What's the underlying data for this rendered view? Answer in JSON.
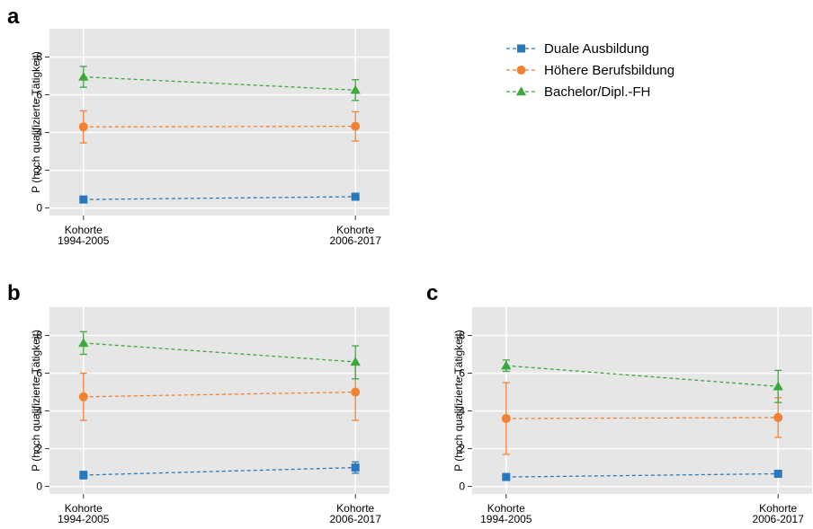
{
  "legend": {
    "placement": "top-right",
    "items": [
      {
        "label": "Duale Ausbildung",
        "color": "#2878bd",
        "marker": "square"
      },
      {
        "label": "Höhere Berufsbildung",
        "color": "#f28232",
        "marker": "circle"
      },
      {
        "label": "Bachelor/Dipl.-FH",
        "color": "#3aa83a",
        "marker": "triangle"
      }
    ]
  },
  "chart_data": [
    {
      "type": "line",
      "panel_label": "a",
      "ylabel": "P (hoch qualifizierte Tätigkeit)",
      "xlabel": "",
      "categories": [
        [
          "Kohorte",
          "1994-2005"
        ],
        [
          "Kohorte",
          "2006-2017"
        ]
      ],
      "ylim": [
        -0.04,
        0.95
      ],
      "yticks": [
        0,
        0.2,
        0.4,
        0.6,
        0.8
      ],
      "ytick_labels": [
        "0",
        ",2",
        ",4",
        ",6",
        ",8"
      ],
      "grid": true,
      "series": [
        {
          "name": "Duale Ausbildung",
          "values": [
            0.045,
            0.06
          ],
          "ci_low": [
            0.04,
            0.052
          ],
          "ci_high": [
            0.05,
            0.068
          ]
        },
        {
          "name": "Höhere Berufsbildung",
          "values": [
            0.43,
            0.433
          ],
          "ci_low": [
            0.345,
            0.355
          ],
          "ci_high": [
            0.515,
            0.51
          ]
        },
        {
          "name": "Bachelor/Dipl.-FH",
          "values": [
            0.695,
            0.625
          ],
          "ci_low": [
            0.64,
            0.57
          ],
          "ci_high": [
            0.75,
            0.68
          ]
        }
      ]
    },
    {
      "type": "line",
      "panel_label": "b",
      "ylabel": "P (hoch qualifizierte Tätigkeit)",
      "xlabel": "",
      "categories": [
        [
          "Kohorte",
          "1994-2005"
        ],
        [
          "Kohorte",
          "2006-2017"
        ]
      ],
      "ylim": [
        -0.04,
        0.95
      ],
      "yticks": [
        0,
        0.2,
        0.4,
        0.6,
        0.8
      ],
      "ytick_labels": [
        "0",
        ",2",
        ",4",
        ",6",
        ",8"
      ],
      "grid": true,
      "series": [
        {
          "name": "Duale Ausbildung",
          "values": [
            0.06,
            0.1
          ],
          "ci_low": [
            0.04,
            0.07
          ],
          "ci_high": [
            0.08,
            0.13
          ]
        },
        {
          "name": "Höhere Berufsbildung",
          "values": [
            0.475,
            0.5
          ],
          "ci_low": [
            0.35,
            0.35
          ],
          "ci_high": [
            0.6,
            0.65
          ]
        },
        {
          "name": "Bachelor/Dipl.-FH",
          "values": [
            0.76,
            0.66
          ],
          "ci_low": [
            0.7,
            0.57
          ],
          "ci_high": [
            0.82,
            0.745
          ]
        }
      ]
    },
    {
      "type": "line",
      "panel_label": "c",
      "ylabel": "P (hoch qualifizierte Tätigkeit)",
      "xlabel": "",
      "categories": [
        [
          "Kohorte",
          "1994-2005"
        ],
        [
          "Kohorte",
          "2006-2017"
        ]
      ],
      "ylim": [
        -0.04,
        0.95
      ],
      "yticks": [
        0,
        0.2,
        0.4,
        0.6,
        0.8
      ],
      "ytick_labels": [
        "0",
        ",2",
        ",4",
        ",6",
        ",8"
      ],
      "grid": true,
      "series": [
        {
          "name": "Duale Ausbildung",
          "values": [
            0.05,
            0.067
          ],
          "ci_low": [
            0.04,
            0.05
          ],
          "ci_high": [
            0.06,
            0.085
          ]
        },
        {
          "name": "Höhere Berufsbildung",
          "values": [
            0.36,
            0.365
          ],
          "ci_low": [
            0.17,
            0.26
          ],
          "ci_high": [
            0.55,
            0.47
          ]
        },
        {
          "name": "Bachelor/Dipl.-FH",
          "values": [
            0.64,
            0.53
          ],
          "ci_low": [
            0.61,
            0.445
          ],
          "ci_high": [
            0.67,
            0.615
          ]
        }
      ]
    }
  ]
}
